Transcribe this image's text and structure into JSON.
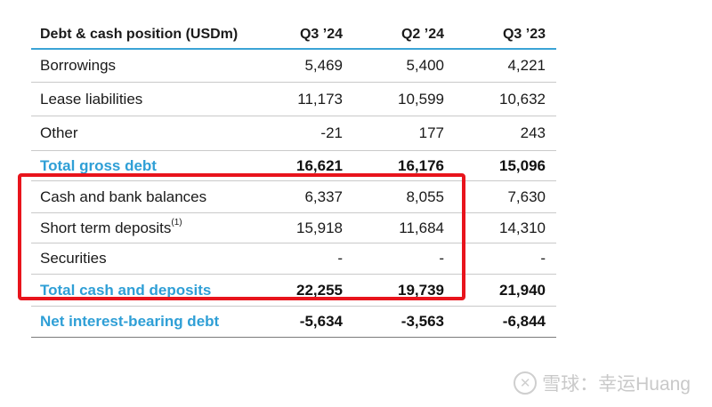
{
  "table": {
    "header": {
      "label": "Debt & cash position (USDm)",
      "cols": [
        "Q3 ’24",
        "Q2 ’24",
        "Q3 ’23"
      ]
    },
    "rows": [
      {
        "label": "Borrowings",
        "sup": "",
        "values": [
          "5,469",
          "5,400",
          "4,221"
        ],
        "total": false
      },
      {
        "label": "Lease liabilities",
        "sup": "",
        "values": [
          "11,173",
          "10,599",
          "10,632"
        ],
        "total": false
      },
      {
        "label": "Other",
        "sup": "",
        "values": [
          "-21",
          "177",
          "243"
        ],
        "total": false
      },
      {
        "label": "Total gross debt",
        "sup": "",
        "values": [
          "16,621",
          "16,176",
          "15,096"
        ],
        "total": true
      },
      {
        "label": "Cash and bank balances",
        "sup": "",
        "values": [
          "6,337",
          "8,055",
          "7,630"
        ],
        "total": false
      },
      {
        "label": "Short term deposits",
        "sup": "(1)",
        "values": [
          "15,918",
          "11,684",
          "14,310"
        ],
        "total": false
      },
      {
        "label": "Securities",
        "sup": "",
        "values": [
          "-",
          "-",
          "-"
        ],
        "total": false
      },
      {
        "label": "Total cash and deposits",
        "sup": "",
        "values": [
          "22,255",
          "19,739",
          "21,940"
        ],
        "total": true
      },
      {
        "label": "Net interest-bearing debt",
        "sup": "",
        "values": [
          "-5,634",
          "-3,563",
          "-6,844"
        ],
        "total": true
      }
    ]
  },
  "watermark": {
    "text": "雪球：幸运Huang"
  },
  "colors": {
    "accent": "#2f9fd6",
    "highlight_border": "#e8141c"
  }
}
